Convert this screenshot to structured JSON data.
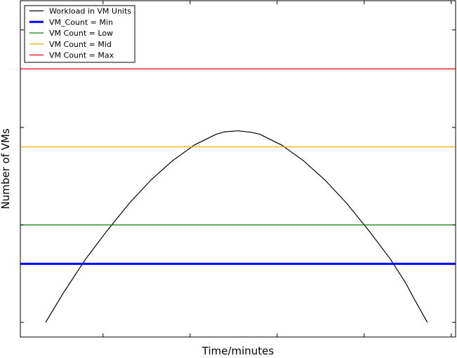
{
  "chart_data": {
    "type": "line",
    "title": "",
    "xlabel": "Time/minutes",
    "ylabel": "Number of VMs",
    "xlim": [
      0,
      1000
    ],
    "ylim": [
      -11.5,
      23.0
    ],
    "grid": false,
    "legend_position": "top-left",
    "series": [
      {
        "name": "Workload in VM Units",
        "kind": "curve",
        "color": "#000000",
        "points": [
          [
            58,
            -10.0
          ],
          [
            100,
            -6.9
          ],
          [
            150,
            -3.5
          ],
          [
            200,
            -0.55
          ],
          [
            250,
            2.2
          ],
          [
            300,
            4.6
          ],
          [
            350,
            6.6
          ],
          [
            400,
            8.2
          ],
          [
            450,
            9.3
          ],
          [
            470,
            9.55
          ],
          [
            500,
            9.65
          ],
          [
            530,
            9.5
          ],
          [
            550,
            9.3
          ],
          [
            600,
            8.2
          ],
          [
            650,
            6.6
          ],
          [
            700,
            4.6
          ],
          [
            750,
            2.2
          ],
          [
            800,
            -0.55
          ],
          [
            850,
            -3.5
          ],
          [
            886,
            -6.0
          ],
          [
            900,
            -7.2
          ],
          [
            935,
            -10.0
          ]
        ]
      },
      {
        "name": "VM_Count = Min",
        "kind": "hline",
        "y": -4,
        "color": "#0000ff"
      },
      {
        "name": "VM Count = Low",
        "kind": "hline",
        "y": 0,
        "color": "#008000"
      },
      {
        "name": "VM Count = Mid",
        "kind": "hline",
        "y": 8,
        "color": "#ffa500"
      },
      {
        "name": "VM Count = Max",
        "kind": "hline",
        "y": 16,
        "color": "#ff0000"
      }
    ]
  }
}
